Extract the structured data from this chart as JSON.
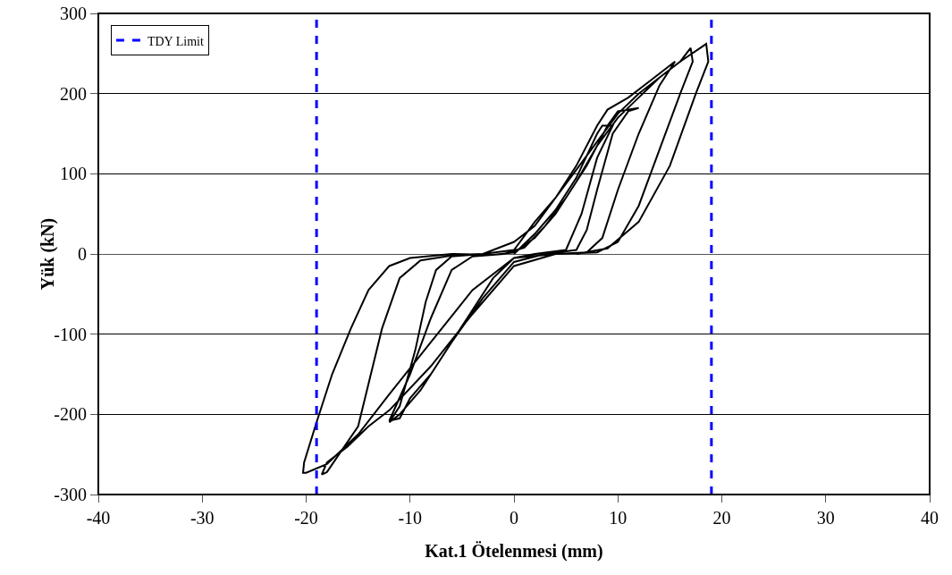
{
  "chart_data": {
    "type": "line",
    "xlabel": "Kat.1 Ötelenmesi (mm)",
    "ylabel": "Yük (kN)",
    "xlim": [
      -40,
      40
    ],
    "xticks": [
      -40,
      -30,
      -20,
      -10,
      0,
      10,
      20,
      30,
      40
    ],
    "ylim": [
      -300,
      300
    ],
    "yticks": [
      -300,
      -200,
      -100,
      0,
      100,
      200,
      300
    ],
    "grid": "y",
    "legend": "top left",
    "marker": "none",
    "series": [
      {
        "color": "#000000",
        "line_style": "solid",
        "x": [
          0,
          2,
          4,
          6,
          8,
          8.5,
          9.5,
          8,
          6.5,
          5,
          2,
          0,
          -2,
          -4,
          -6,
          -8,
          -10,
          -11,
          -12,
          -10,
          -8,
          -6,
          -4,
          -1,
          1,
          3,
          5,
          7,
          9,
          10,
          12,
          11,
          9.5,
          8,
          7,
          6,
          3,
          0,
          -3,
          -6,
          -9,
          -11,
          -12,
          -11,
          -9.5,
          -8.5,
          -7.5,
          -6,
          -3,
          0,
          2,
          4,
          6,
          8,
          9,
          11,
          13,
          15,
          15.5,
          14,
          12,
          10,
          8.5,
          7,
          4,
          0,
          -4,
          -8,
          -12,
          -14,
          -16,
          -18,
          -18.5,
          -18,
          -15,
          -12.7,
          -11,
          -9,
          -6,
          -3,
          0,
          2,
          4,
          6,
          8,
          10,
          12,
          14,
          16,
          17,
          17.2,
          16,
          14,
          12,
          10,
          8,
          4,
          0,
          -4,
          -8,
          -12,
          -15,
          -18,
          -20,
          -20.3,
          -20.2,
          -19,
          -17.5,
          -15.7,
          -14,
          -12,
          -10,
          -6,
          -2,
          0,
          2,
          4,
          6,
          8,
          10,
          12,
          14,
          16,
          18.5,
          18.7,
          17.5,
          15,
          12,
          9,
          6
        ],
        "values": [
          0,
          25,
          55,
          95,
          150,
          160,
          160,
          120,
          50,
          5,
          0,
          -5,
          -30,
          -70,
          -110,
          -150,
          -180,
          -205,
          -208,
          -150,
          -80,
          -20,
          -3,
          0,
          8,
          35,
          70,
          110,
          160,
          178,
          182,
          178,
          150,
          80,
          30,
          5,
          0,
          -10,
          -55,
          -110,
          -170,
          -200,
          -210,
          -190,
          -120,
          -60,
          -20,
          -3,
          0,
          15,
          35,
          70,
          110,
          160,
          180,
          195,
          215,
          235,
          240,
          210,
          150,
          80,
          20,
          2,
          0,
          -15,
          -75,
          -140,
          -195,
          -215,
          -240,
          -260,
          -275,
          -272,
          -215,
          -93,
          -30,
          -8,
          -2,
          0,
          5,
          40,
          70,
          105,
          140,
          175,
          200,
          220,
          240,
          257,
          240,
          200,
          130,
          60,
          15,
          2,
          0,
          -5,
          -45,
          -110,
          -175,
          -225,
          -262,
          -273,
          -273,
          -260,
          -210,
          -150,
          -93,
          -45,
          -15,
          -5,
          0,
          -1,
          2,
          20,
          50,
          90,
          135,
          170,
          195,
          220,
          240,
          262,
          240,
          200,
          110,
          40,
          7,
          0
        ]
      },
      {
        "name": "TDY Limit",
        "color": "#0000ff",
        "line_style": "dashed",
        "x": [
          -19,
          -19,
          null,
          19,
          19
        ],
        "values": [
          -300,
          300,
          null,
          -300,
          300
        ]
      }
    ]
  }
}
